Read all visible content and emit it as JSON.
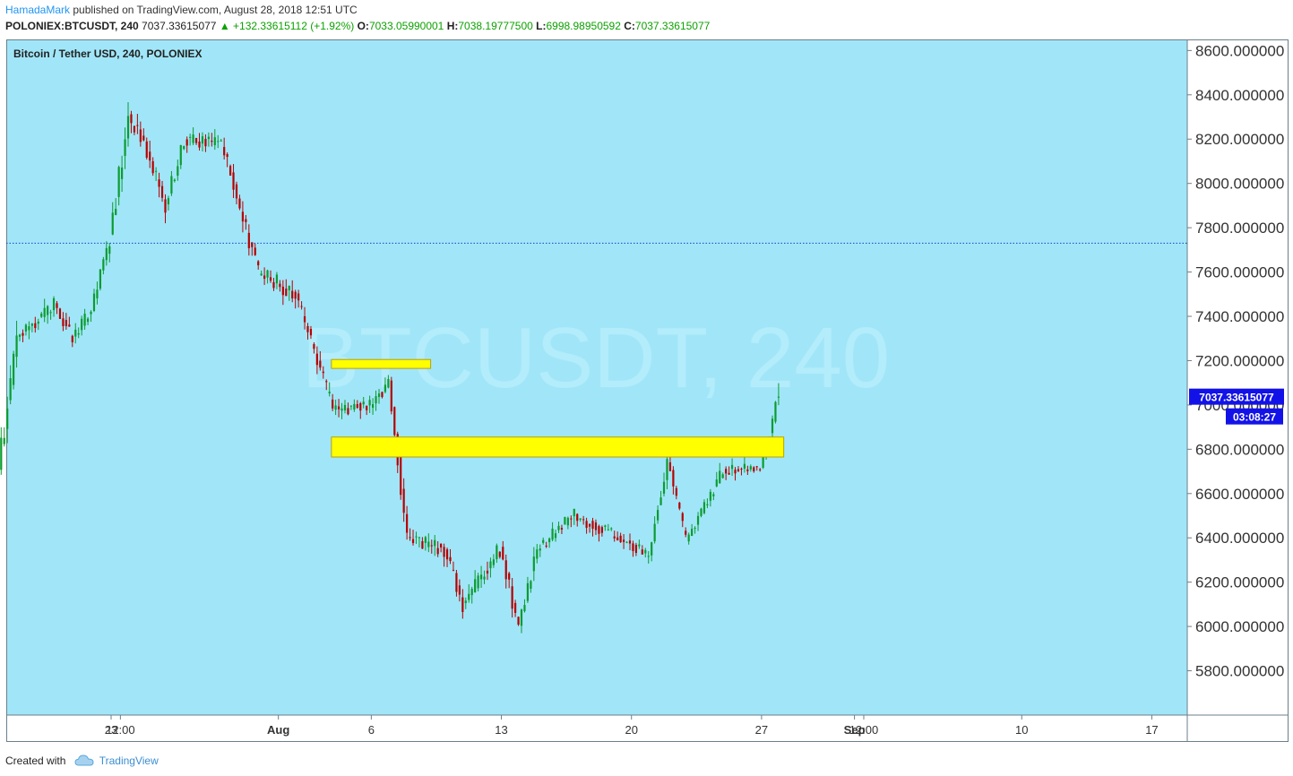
{
  "header": {
    "author": "HamadaMark",
    "published_text": "published on TradingView.com, August 28, 2018 12:51 UTC",
    "symbol": "POLONIEX:BTCUSDT, 240",
    "last": "7037.33615077",
    "change": "▲ +132.33615112 (+1.92%)",
    "o_label": "O:",
    "o_value": "7033.05990001",
    "h_label": "H:",
    "h_value": "7038.19777500",
    "l_label": "L:",
    "l_value": "6998.98950592",
    "c_label": "C:",
    "c_value": "7037.33615077"
  },
  "footer": {
    "created_with": "Created with",
    "brand": "TradingView",
    "brand_icon": "cloud-icon"
  },
  "colors": {
    "background": "#a1e6f8",
    "up": "#0c9b30",
    "down": "#b60000",
    "zone_fill": "#ffff00",
    "zone_stroke": "#b9a200",
    "price_line": "#1e3cc8",
    "price_badge": "#1212e8",
    "watermark": "#b8eefb"
  },
  "chart_data": {
    "type": "candlestick",
    "title": "Bitcoin / Tether USD, 240, POLONIEX",
    "watermark": "BTCUSDT, 240",
    "ylim": [
      5600,
      8650
    ],
    "y_ticks": [
      "8600.000000",
      "8400.000000",
      "8200.000000",
      "8000.000000",
      "7800.000000",
      "7600.000000",
      "7400.000000",
      "7200.000000",
      "7000.000000",
      "6800.000000",
      "6600.000000",
      "6400.000000",
      "6200.000000",
      "6000.000000",
      "5800.000000"
    ],
    "x_ticks": [
      "23",
      "12:00",
      "Aug",
      "6",
      "13",
      "20",
      "27",
      "Sep",
      "12:00",
      "10",
      "17"
    ],
    "horizontal_line": 7730,
    "last_price_label": "7037.33615077",
    "countdown_label": "03:08:27",
    "zones": [
      {
        "start": "Aug 4",
        "end": "Aug 9",
        "low": 7165,
        "high": 7205
      },
      {
        "start": "Aug 4",
        "end": "Aug 28",
        "low": 6765,
        "high": 6855
      }
    ],
    "segments": [
      {
        "from": "Jul 17",
        "to": "Jul 18",
        "start": 6700,
        "end": 7300,
        "vol": 0.012
      },
      {
        "from": "Jul 18",
        "to": "Jul 20",
        "start": 7300,
        "end": 7450,
        "vol": 0.007
      },
      {
        "from": "Jul 20",
        "to": "Jul 21",
        "start": 7450,
        "end": 7300,
        "vol": 0.006
      },
      {
        "from": "Jul 21",
        "to": "Jul 22",
        "start": 7300,
        "end": 7430,
        "vol": 0.006
      },
      {
        "from": "Jul 22",
        "to": "Jul 23",
        "start": 7430,
        "end": 7750,
        "vol": 0.008
      },
      {
        "from": "Jul 23",
        "to": "Jul 24",
        "start": 7750,
        "end": 8300,
        "vol": 0.01
      },
      {
        "from": "Jul 24",
        "to": "Jul 25",
        "start": 8300,
        "end": 8150,
        "vol": 0.008
      },
      {
        "from": "Jul 25",
        "to": "Jul 26",
        "start": 8150,
        "end": 7900,
        "vol": 0.008
      },
      {
        "from": "Jul 26",
        "to": "Jul 27",
        "start": 7900,
        "end": 8200,
        "vol": 0.007
      },
      {
        "from": "Jul 27",
        "to": "Jul 29",
        "start": 8200,
        "end": 8180,
        "vol": 0.006
      },
      {
        "from": "Jul 29",
        "to": "Jul 31",
        "start": 8180,
        "end": 7600,
        "vol": 0.008
      },
      {
        "from": "Jul 31",
        "to": "Aug 2",
        "start": 7600,
        "end": 7500,
        "vol": 0.008
      },
      {
        "from": "Aug 2",
        "to": "Aug 4",
        "start": 7500,
        "end": 6980,
        "vol": 0.008
      },
      {
        "from": "Aug 4",
        "to": "Aug 6",
        "start": 6980,
        "end": 7000,
        "vol": 0.007
      },
      {
        "from": "Aug 6",
        "to": "Aug 7",
        "start": 7000,
        "end": 7100,
        "vol": 0.007
      },
      {
        "from": "Aug 7",
        "to": "Aug 8",
        "start": 7100,
        "end": 6400,
        "vol": 0.01
      },
      {
        "from": "Aug 8",
        "to": "Aug 10",
        "start": 6400,
        "end": 6350,
        "vol": 0.009
      },
      {
        "from": "Aug 10",
        "to": "Aug 11",
        "start": 6350,
        "end": 6100,
        "vol": 0.009
      },
      {
        "from": "Aug 11",
        "to": "Aug 13",
        "start": 6100,
        "end": 6350,
        "vol": 0.009
      },
      {
        "from": "Aug 13",
        "to": "Aug 14",
        "start": 6350,
        "end": 6000,
        "vol": 0.01
      },
      {
        "from": "Aug 14",
        "to": "Aug 15",
        "start": 6000,
        "end": 6350,
        "vol": 0.009
      },
      {
        "from": "Aug 15",
        "to": "Aug 17",
        "start": 6350,
        "end": 6500,
        "vol": 0.008
      },
      {
        "from": "Aug 17",
        "to": "Aug 19",
        "start": 6500,
        "end": 6420,
        "vol": 0.007
      },
      {
        "from": "Aug 19",
        "to": "Aug 21",
        "start": 6420,
        "end": 6320,
        "vol": 0.007
      },
      {
        "from": "Aug 21",
        "to": "Aug 22",
        "start": 6320,
        "end": 6750,
        "vol": 0.009
      },
      {
        "from": "Aug 22",
        "to": "Aug 23",
        "start": 6750,
        "end": 6380,
        "vol": 0.009
      },
      {
        "from": "Aug 23",
        "to": "Aug 25",
        "start": 6380,
        "end": 6700,
        "vol": 0.007
      },
      {
        "from": "Aug 25",
        "to": "Aug 27",
        "start": 6700,
        "end": 6720,
        "vol": 0.006
      },
      {
        "from": "Aug 27",
        "to": "Aug 28",
        "start": 6720,
        "end": 7037,
        "vol": 0.007
      }
    ]
  }
}
